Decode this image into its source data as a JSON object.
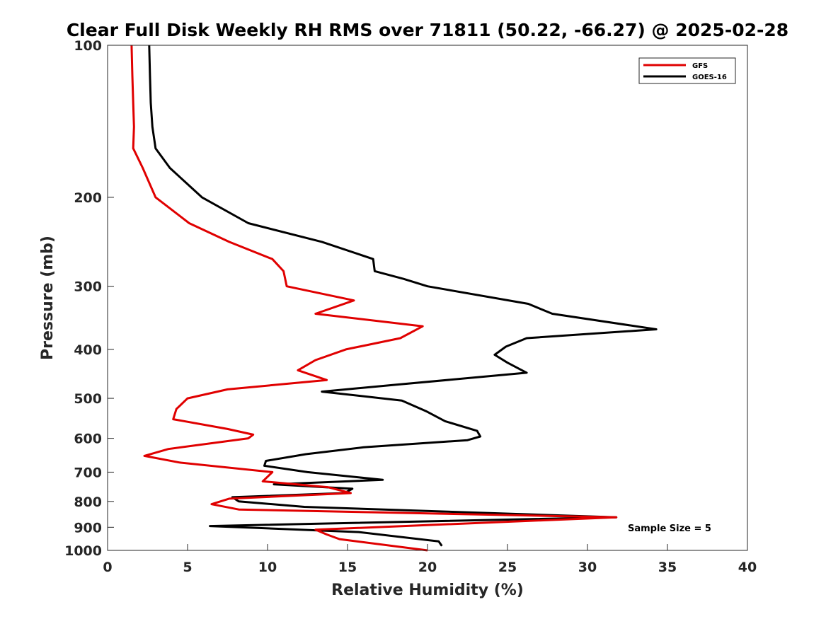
{
  "chart_data": {
    "type": "line",
    "title": "Clear Full Disk Weekly RH RMS over 71811 (50.22, -66.27) @ 2025-02-28",
    "xlabel": "Relative Humidity (%)",
    "ylabel": "Pressure (mb)",
    "xlim": [
      0,
      40
    ],
    "ylim": [
      100,
      1000
    ],
    "yscale": "log",
    "y_reversed": true,
    "xticks": [
      0,
      5,
      10,
      15,
      20,
      25,
      30,
      35,
      40
    ],
    "yticks": [
      100,
      200,
      300,
      400,
      500,
      600,
      700,
      800,
      900,
      1000
    ],
    "grid": false,
    "legend_position": "top-right",
    "annotation": "Sample Size = 5",
    "series": [
      {
        "name": "GFS",
        "color": "#e00000",
        "x": [
          1.5,
          1.55,
          1.6,
          1.65,
          1.6,
          2.2,
          3.0,
          5.1,
          7.6,
          10.3,
          11.0,
          11.2,
          15.4,
          13.0,
          19.7,
          18.3,
          14.9,
          13.0,
          11.9,
          13.7,
          7.5,
          5.0,
          4.3,
          4.1,
          7.5,
          9.1,
          8.8,
          3.8,
          2.3,
          4.5,
          10.3,
          9.7,
          13.8,
          15.2,
          7.6,
          6.5,
          8.2,
          31.8,
          13.0,
          13.7,
          14.5,
          20.0
        ],
        "y": [
          100,
          115,
          130,
          145,
          160,
          175,
          200,
          225,
          245,
          265,
          280,
          300,
          320,
          340,
          360,
          380,
          400,
          420,
          440,
          460,
          480,
          500,
          525,
          550,
          575,
          590,
          600,
          630,
          650,
          670,
          700,
          730,
          750,
          770,
          790,
          810,
          830,
          860,
          910,
          930,
          950,
          1000
        ]
      },
      {
        "name": "GOES-16",
        "color": "#000000",
        "x": [
          2.6,
          2.65,
          2.7,
          2.8,
          3.0,
          3.9,
          5.9,
          8.8,
          13.4,
          16.6,
          16.7,
          18.5,
          20.0,
          26.3,
          27.8,
          34.3,
          26.2,
          24.9,
          24.2,
          25.0,
          26.2,
          18.0,
          13.4,
          18.4,
          19.9,
          21.1,
          23.1,
          23.3,
          22.5,
          16.0,
          12.4,
          9.9,
          9.8,
          12.5,
          17.2,
          10.4,
          15.3,
          14.8,
          7.8,
          8.2,
          12.3,
          31.8,
          6.4,
          15.7,
          20.7,
          20.9
        ],
        "y": [
          100,
          115,
          130,
          145,
          160,
          175,
          200,
          225,
          245,
          265,
          280,
          290,
          300,
          325,
          340,
          365,
          380,
          395,
          410,
          425,
          445,
          470,
          485,
          505,
          530,
          555,
          580,
          595,
          605,
          625,
          645,
          665,
          680,
          700,
          725,
          740,
          755,
          770,
          785,
          800,
          820,
          860,
          895,
          920,
          960,
          980
        ]
      }
    ]
  }
}
